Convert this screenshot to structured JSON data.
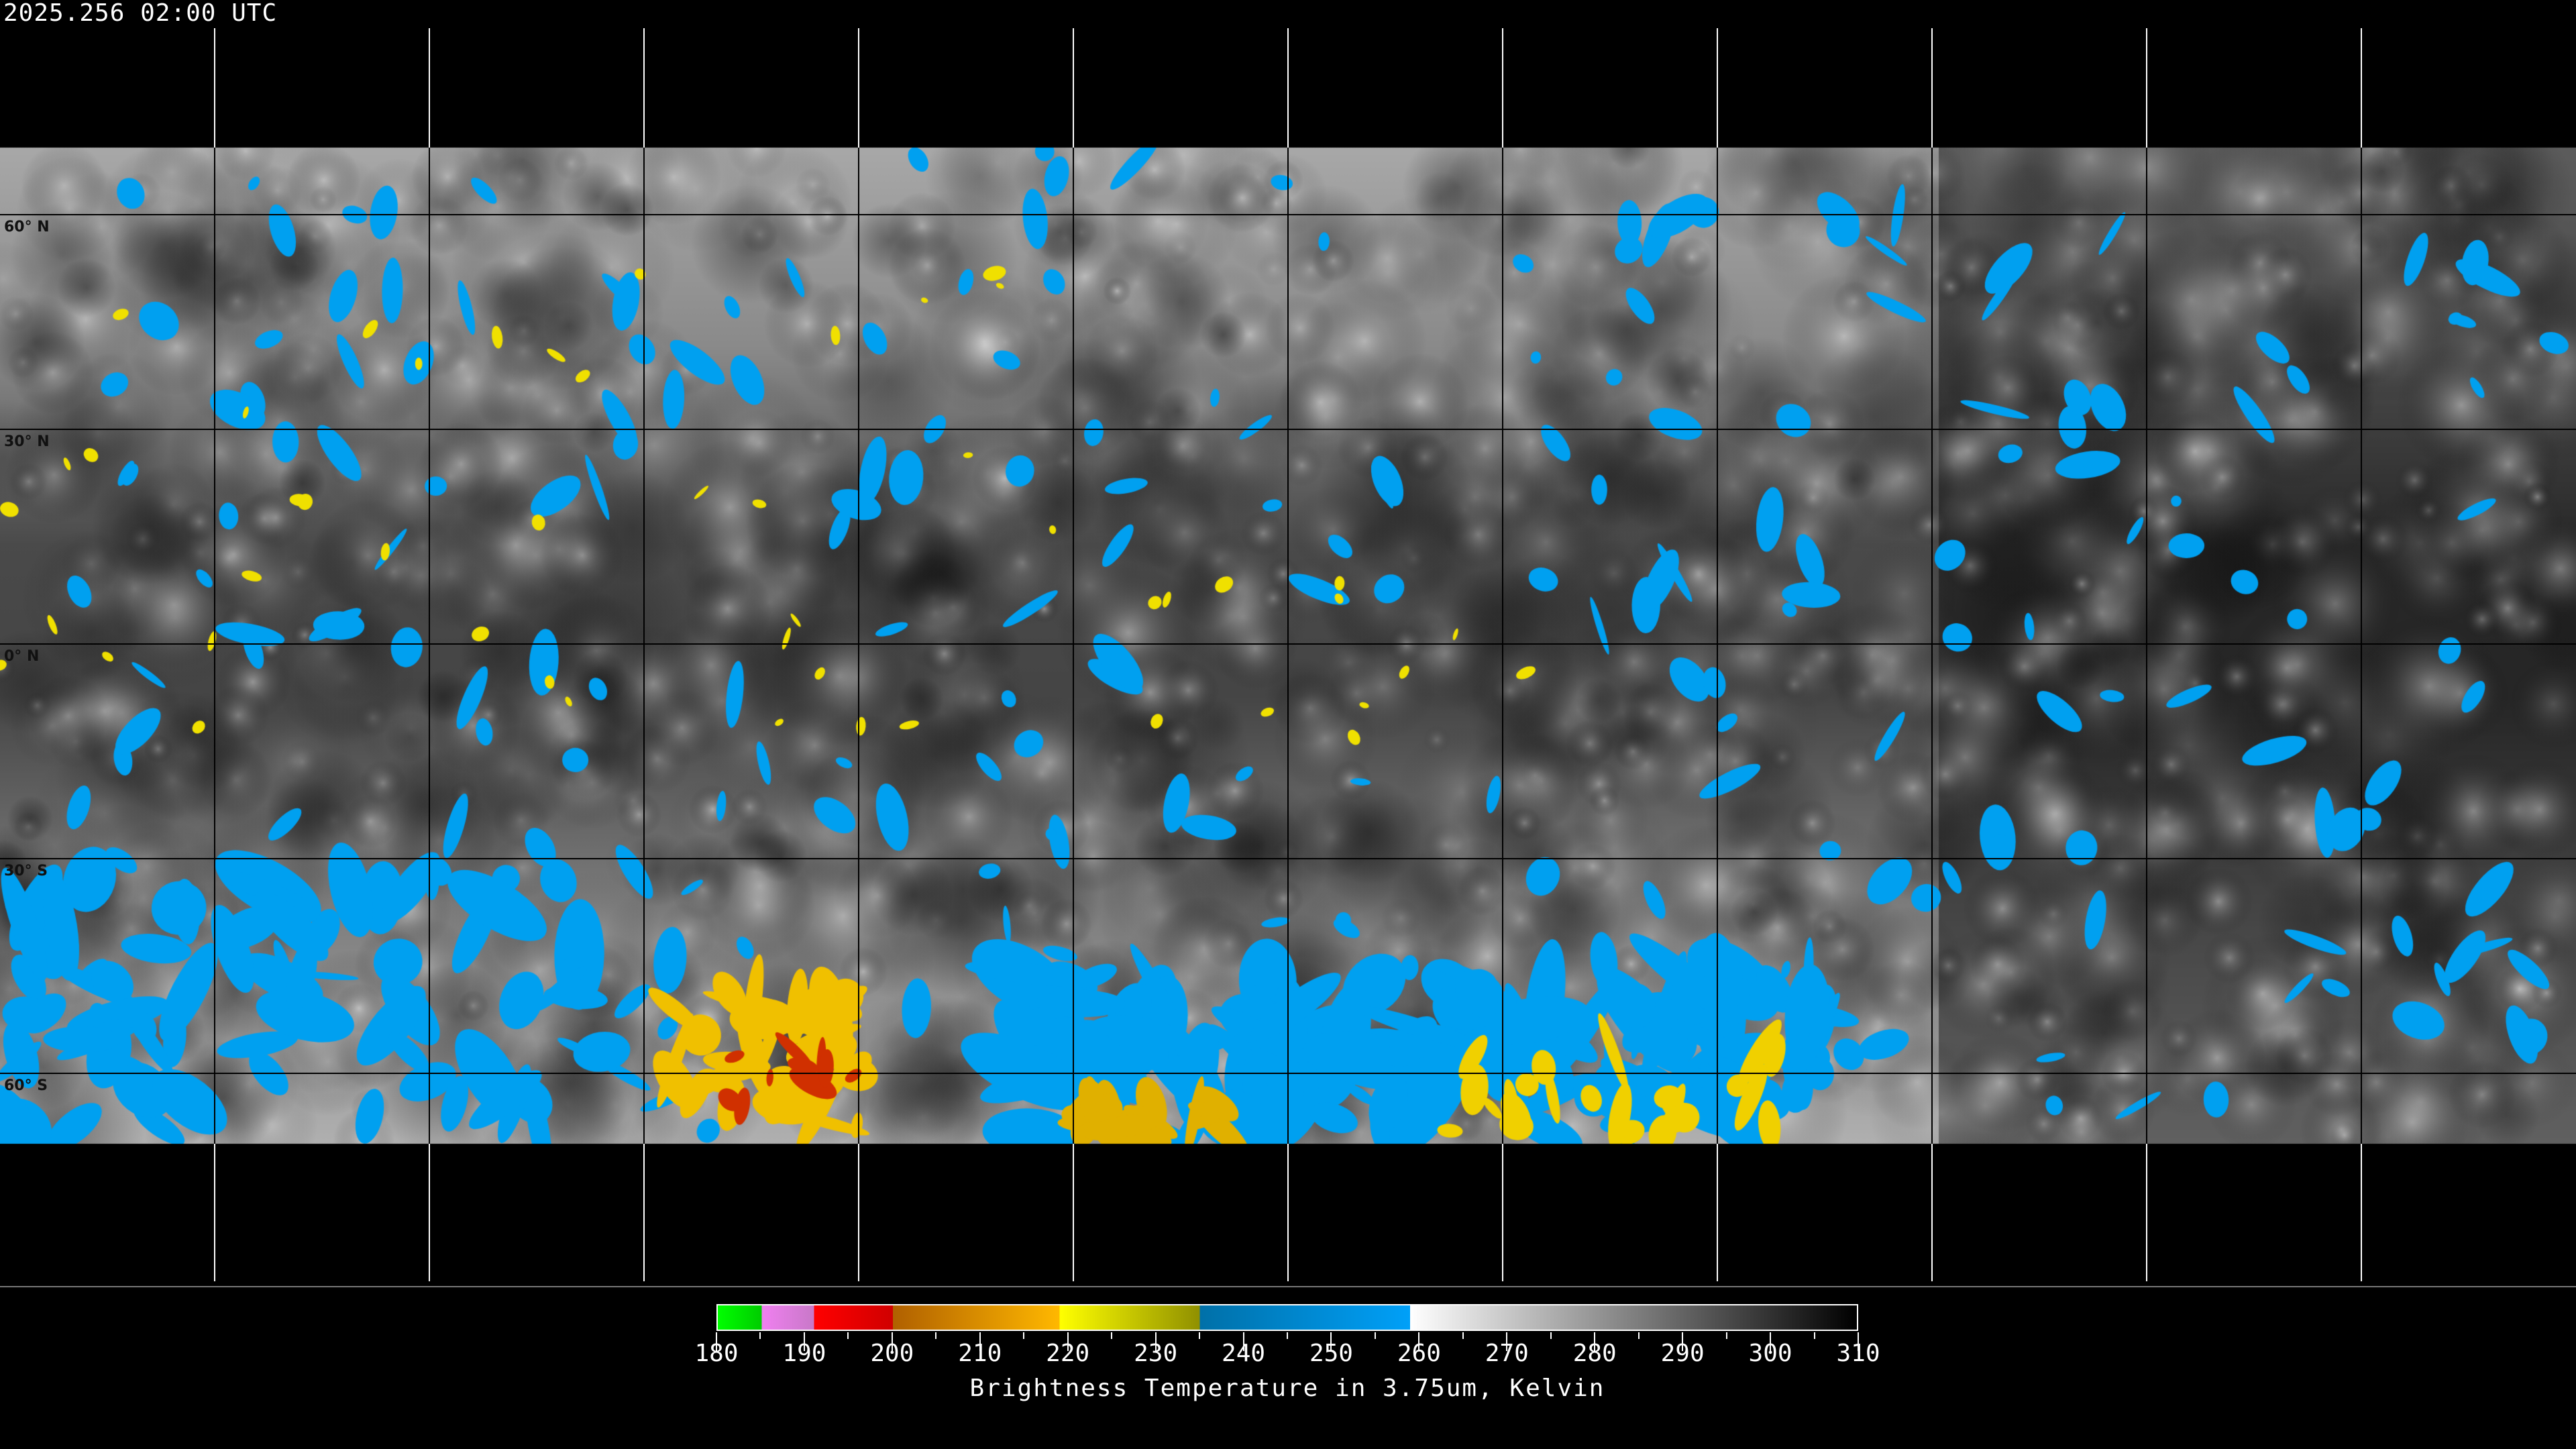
{
  "header": {
    "timestamp": "2025.256 02:00 UTC"
  },
  "map": {
    "projection": "equirectangular",
    "latitude_labels": [
      "60° N",
      "30° N",
      "0° N",
      "30° S",
      "60° S"
    ],
    "latitude_values": [
      60,
      30,
      0,
      -30,
      -60
    ],
    "longitude_gridlines_deg": 30
  },
  "colorbar": {
    "title": "Brightness Temperature in 3.75um, Kelvin",
    "range": [
      180,
      310
    ],
    "tick_labels": [
      "180",
      "190",
      "200",
      "210",
      "220",
      "230",
      "240",
      "250",
      "260",
      "270",
      "280",
      "290",
      "300",
      "310"
    ],
    "segments": [
      {
        "from": 180,
        "to": 185,
        "colors": [
          "#00ff00",
          "#00cc00"
        ]
      },
      {
        "from": 185,
        "to": 191,
        "colors": [
          "#f080f0",
          "#c878c8"
        ]
      },
      {
        "from": 191,
        "to": 200,
        "colors": [
          "#ff0000",
          "#d00000"
        ]
      },
      {
        "from": 200,
        "to": 219,
        "colors": [
          "#b06000",
          "#ffb800"
        ]
      },
      {
        "from": 219,
        "to": 235,
        "colors": [
          "#ffff00",
          "#909000"
        ]
      },
      {
        "from": 235,
        "to": 259,
        "colors": [
          "#0070a8",
          "#00a0f8"
        ]
      },
      {
        "from": 259,
        "to": 310,
        "colors": [
          "#ffffff",
          "#000000"
        ]
      }
    ]
  }
}
